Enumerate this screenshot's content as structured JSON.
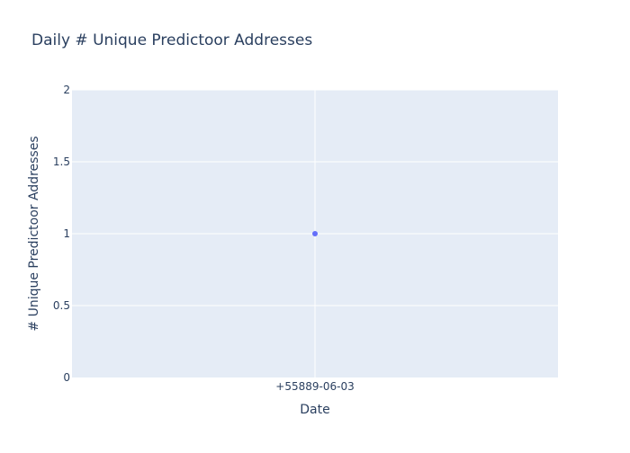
{
  "chart_data": {
    "type": "scatter",
    "title": "Daily # Unique Predictoor Addresses",
    "xlabel": "Date",
    "ylabel": "# Unique Predictoor Addresses",
    "x": [
      "+55889-06-03"
    ],
    "series": [
      {
        "values": [
          1
        ]
      }
    ],
    "xticks": [
      "+55889-06-03"
    ],
    "yticks": [
      "0",
      "0.5",
      "1",
      "1.5",
      "2"
    ],
    "ylim": [
      0,
      2
    ],
    "grid": true,
    "legend": "none",
    "colors": {
      "plot_background": "#e5ecf6",
      "grid": "#ffffff",
      "marker": "#636efa",
      "text": "#2a3f5f"
    }
  }
}
